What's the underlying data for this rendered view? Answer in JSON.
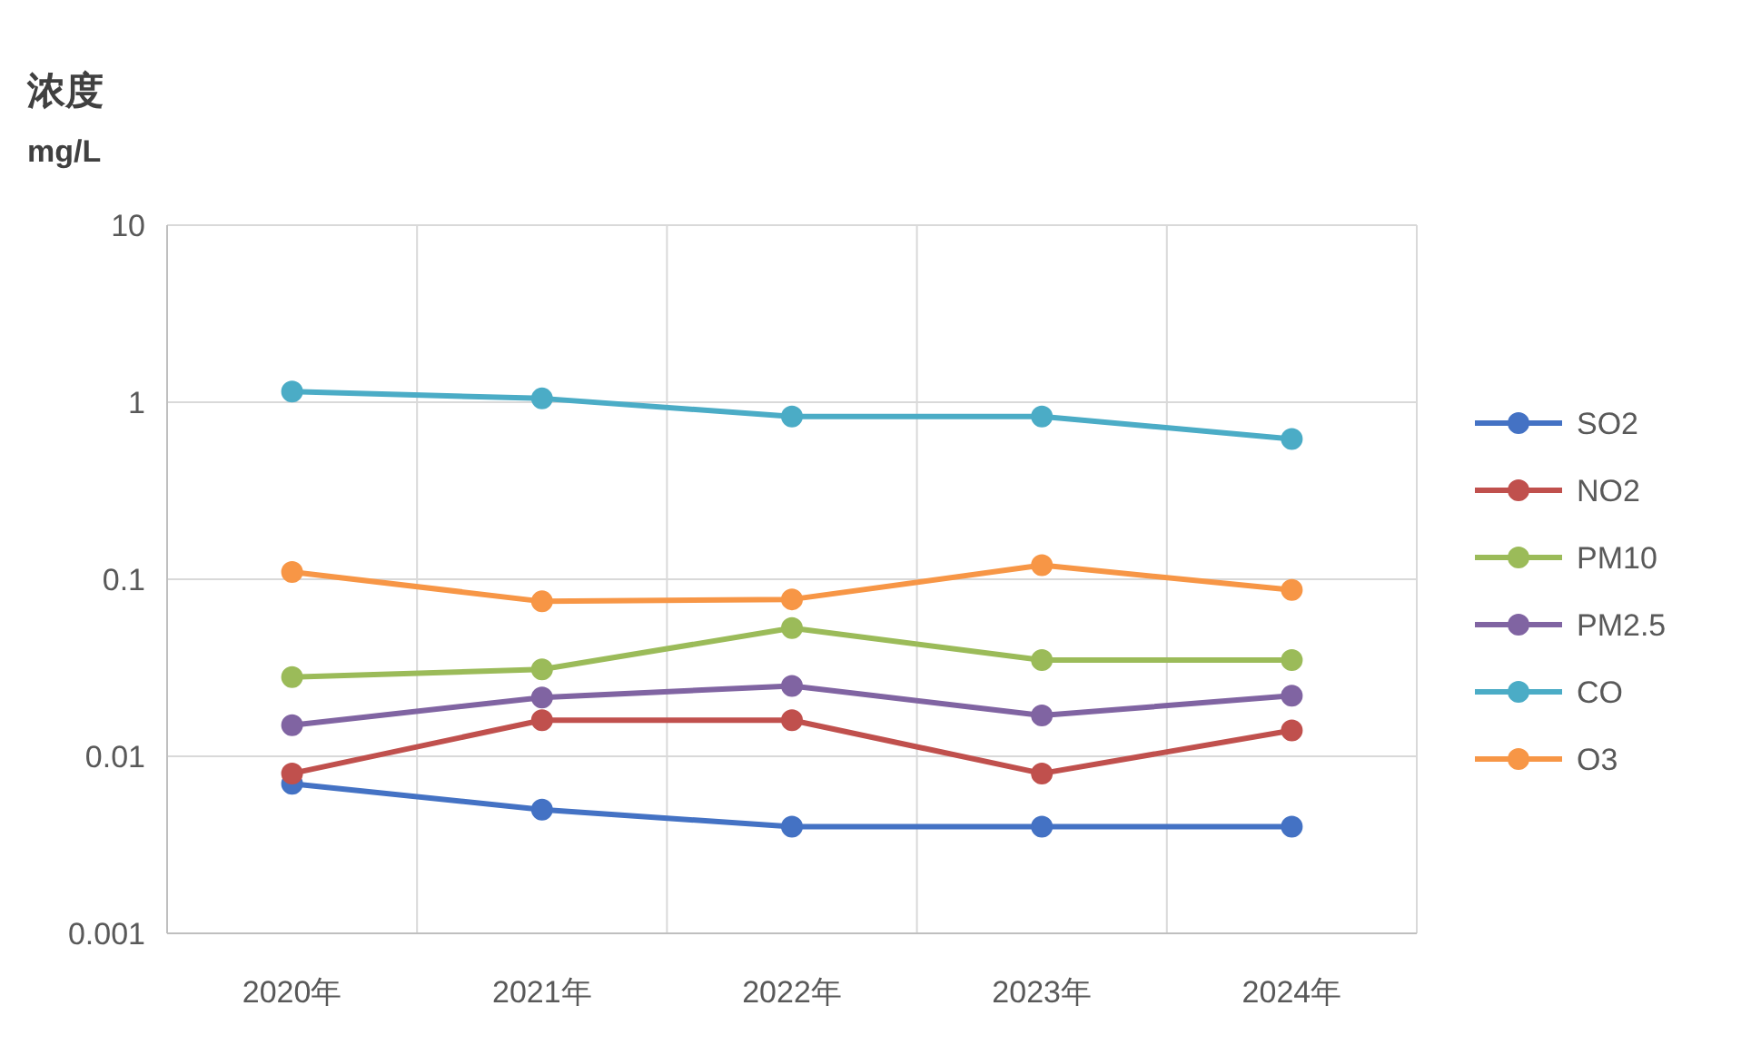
{
  "chart_data": {
    "type": "line",
    "ylabel": "浓度\nmg/L",
    "categories": [
      "2020年",
      "2021年",
      "2022年",
      "2023年",
      "2024年"
    ],
    "series": [
      {
        "name": "SO2",
        "color": "#4472c4",
        "values": [
          0.007,
          0.005,
          0.004,
          0.004,
          0.004
        ]
      },
      {
        "name": "NO2",
        "color": "#c0504d",
        "values": [
          0.008,
          0.016,
          0.016,
          0.008,
          0.014
        ]
      },
      {
        "name": "PM10",
        "color": "#9bbb59",
        "values": [
          0.028,
          0.031,
          0.053,
          0.035,
          0.035
        ]
      },
      {
        "name": "PM2.5",
        "color": "#8064a2",
        "values": [
          0.015,
          0.0215,
          0.025,
          0.017,
          0.022
        ]
      },
      {
        "name": "CO",
        "color": "#4bacc6",
        "values": [
          1.15,
          1.05,
          0.83,
          0.83,
          0.62
        ]
      },
      {
        "name": "O3",
        "color": "#f79646",
        "values": [
          0.11,
          0.075,
          0.077,
          0.12,
          0.087
        ]
      }
    ],
    "log": true,
    "ylim": [
      0.001,
      10
    ],
    "yticks": [
      0.001,
      0.01,
      0.1,
      1,
      10
    ],
    "grid": true,
    "legend": "right",
    "marker": "circle",
    "line_style": "solid"
  }
}
